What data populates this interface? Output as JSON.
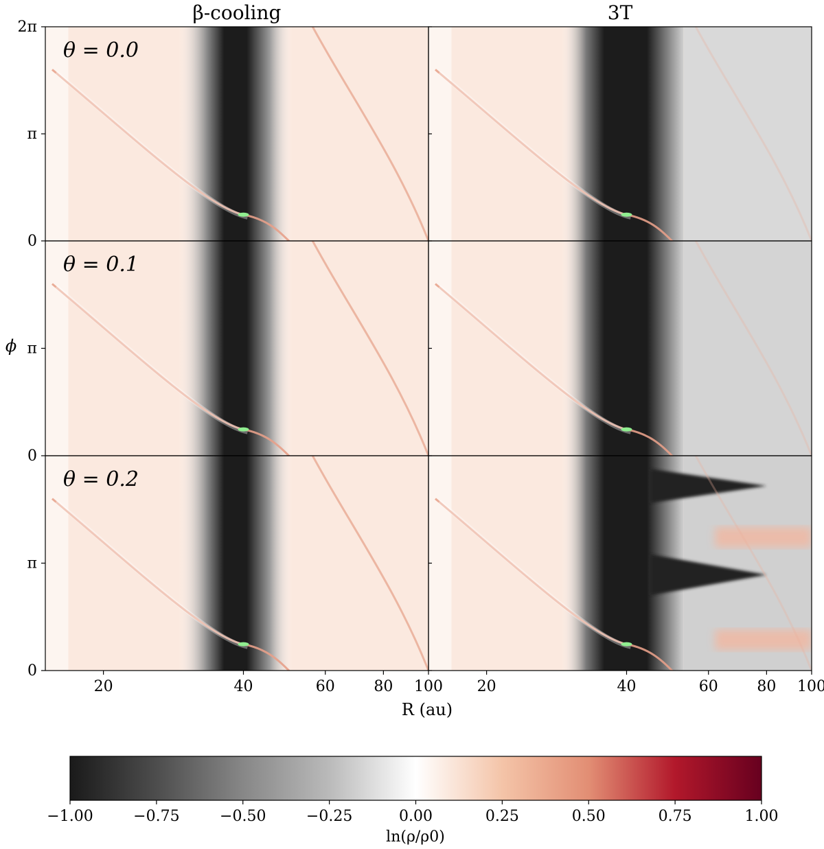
{
  "chart_data": {
    "type": "heatmap",
    "column_titles": [
      "β-cooling",
      "3T"
    ],
    "row_titles": [
      "θ = 0.0",
      "θ = 0.1",
      "θ = 0.2"
    ],
    "xlabel": "R (au)",
    "ylabel": "ϕ",
    "xscale": "log",
    "xlim": [
      15,
      100
    ],
    "x_ticks": [
      {
        "value": 20,
        "label": "20"
      },
      {
        "value": 40,
        "label": "40"
      },
      {
        "value": 60,
        "label": "60"
      },
      {
        "value": 80,
        "label": "80"
      },
      {
        "value": 100,
        "label": "100"
      }
    ],
    "y_ticks": [
      {
        "value": 0,
        "label": "0"
      },
      {
        "value": 3.1416,
        "label": "π"
      },
      {
        "value": 6.2832,
        "label": "2π"
      }
    ],
    "ylim": [
      0,
      6.2832
    ],
    "planet": {
      "R": 40,
      "phi": 0.77
    },
    "gap_inner_edge": 35,
    "gap_outer_edge_beta": 45,
    "gap_outer_edge_3T": 47,
    "colorbar": {
      "label": "ln(ρ/ρ0)",
      "range": [
        -1.0,
        1.0
      ],
      "ticks": [
        "−1.00",
        "−0.75",
        "−0.50",
        "−0.25",
        "0.00",
        "0.25",
        "0.50",
        "0.75",
        "1.00"
      ],
      "colormap": "RdGy_r",
      "colors": {
        "min": "#1a1a1a",
        "low": "#878787",
        "mid": "#ffffff",
        "high": "#d6604d",
        "max": "#67001f"
      }
    },
    "planet_color": "#90ee90"
  }
}
